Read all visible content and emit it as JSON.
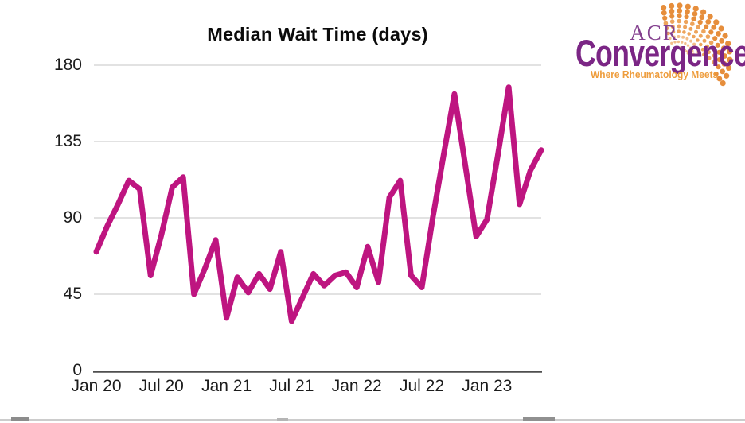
{
  "chart_data": {
    "type": "line",
    "title": "Median Wait Time (days)",
    "x": [
      "Jan 20",
      "Feb 20",
      "Mar 20",
      "Apr 20",
      "May 20",
      "Jun 20",
      "Jul 20",
      "Aug 20",
      "Sep 20",
      "Oct 20",
      "Nov 20",
      "Dec 20",
      "Jan 21",
      "Feb 21",
      "Mar 21",
      "Apr 21",
      "May 21",
      "Jun 21",
      "Jul 21",
      "Aug 21",
      "Sep 21",
      "Oct 21",
      "Nov 21",
      "Dec 21",
      "Jan 22",
      "Feb 22",
      "Mar 22",
      "Apr 22",
      "May 22",
      "Jun 22",
      "Jul 22",
      "Aug 22",
      "Sep 22",
      "Oct 22",
      "Nov 22",
      "Dec 22",
      "Jan 23",
      "Feb 23",
      "Mar 23",
      "Apr 23",
      "May 23",
      "Jun 23"
    ],
    "values": [
      70,
      85,
      98,
      112,
      107,
      56,
      80,
      108,
      114,
      45,
      60,
      77,
      31,
      55,
      46,
      57,
      48,
      70,
      29,
      43,
      57,
      50,
      56,
      58,
      49,
      73,
      52,
      102,
      112,
      56,
      49,
      90,
      127,
      163,
      121,
      79,
      89,
      127,
      167,
      98,
      118,
      130
    ],
    "x_tick_labels": [
      "Jan 20",
      "Jul 20",
      "Jan 21",
      "Jul 21",
      "Jan 22",
      "Jul 22",
      "Jan 23"
    ],
    "x_tick_every": 6,
    "y_ticks": [
      0,
      45,
      90,
      135,
      180
    ],
    "ylim": [
      0,
      180
    ],
    "xlabel": "",
    "ylabel": "",
    "grid": "horizontal",
    "legend": "none",
    "line_color": "#be1580",
    "gridline_color": "#d8d8d8",
    "axis_color": "#4f4f4f",
    "text_color": "#1c1c1c"
  },
  "logo": {
    "acr": "ACR",
    "name": "Convergence",
    "tagline": "Where Rheumatology Meets",
    "purple": "#7b2685",
    "orange": "#ee9d3d"
  }
}
